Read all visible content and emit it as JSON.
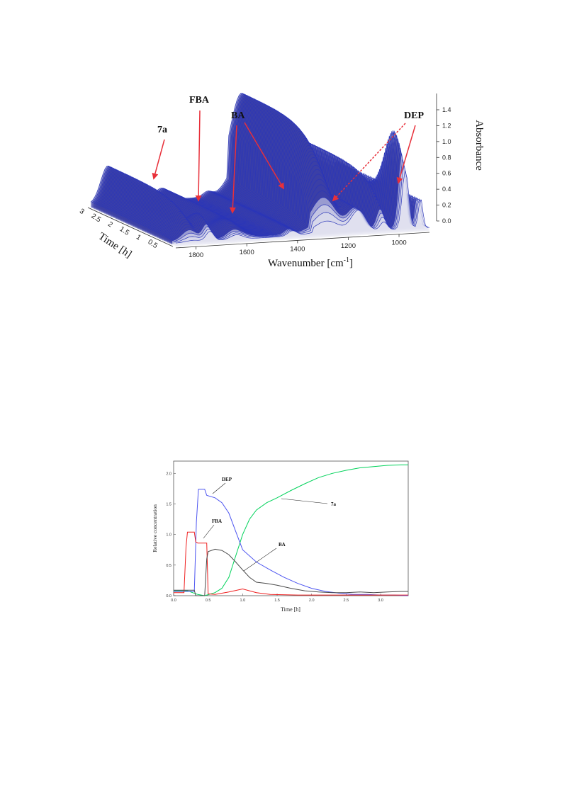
{
  "chart_data": [
    {
      "type": "area",
      "projection": "3d-waterfall",
      "xlabel": "Wavenumber [cm",
      "xlabel_sup": "-1",
      "xlabel_close": "]",
      "ylabel": "Time [h]",
      "zlabel": "Absorbance",
      "x_ticks": [
        "1800",
        "1600",
        "1400",
        "1200",
        "1000"
      ],
      "y_ticks": [
        "3",
        "2.5",
        "2",
        "1.5",
        "1",
        "0.5"
      ],
      "z_ticks": [
        "1.4",
        "1.2",
        "1.0",
        "0.8",
        "0.6",
        "0.4",
        "0.2",
        "0.0"
      ],
      "xlim": [
        1880,
        880
      ],
      "ylim": [
        0,
        3
      ],
      "zlim": [
        0,
        1.5
      ],
      "annotations": [
        {
          "text": "7a",
          "target_wavenumber": 1810
        },
        {
          "text": "FBA",
          "target_wavenumber": 1765
        },
        {
          "text": "BA",
          "target_wavenumber": 1640
        },
        {
          "text": "DEP",
          "target_wavenumber": 1240
        }
      ],
      "colors": {
        "mesh": "#2a35b8",
        "surface": "#3d3fa6",
        "highlight": "#e8e8f2",
        "arrow": "#e8303a"
      }
    },
    {
      "type": "line",
      "xlabel": "Time [h]",
      "ylabel": "Relative concentration",
      "xlim": [
        0,
        3.4
      ],
      "ylim": [
        0,
        2.2
      ],
      "x_ticks": [
        "0.0",
        "0.5",
        "1.0",
        "1.5",
        "2.0",
        "2.5",
        "3.0"
      ],
      "y_ticks": [
        "0.0",
        "0.5",
        "1.0",
        "1.5",
        "2.0"
      ],
      "grid": false,
      "annotations": [
        {
          "text": "DEP",
          "x": 0.55,
          "y": 1.7
        },
        {
          "text": "FBA",
          "x": 0.42,
          "y": 0.9
        },
        {
          "text": "7a",
          "x": 1.52,
          "y": 1.57
        },
        {
          "text": "BA",
          "x": 1.0,
          "y": 0.37
        }
      ],
      "series": [
        {
          "color": "#00d25a",
          "x": [
            0,
            0.2,
            0.35,
            0.45,
            0.6,
            0.7,
            0.8,
            0.9,
            1.0,
            1.1,
            1.2,
            1.35,
            1.5,
            1.7,
            1.9,
            2.1,
            2.3,
            2.5,
            2.7,
            2.9,
            3.1,
            3.3,
            3.4
          ],
          "y": [
            0.08,
            0.08,
            0.02,
            0.0,
            0.05,
            0.12,
            0.3,
            0.65,
            1.0,
            1.25,
            1.4,
            1.52,
            1.6,
            1.72,
            1.83,
            1.93,
            2.0,
            2.05,
            2.09,
            2.11,
            2.13,
            2.14,
            2.14
          ]
        },
        {
          "color": "#4d55f0",
          "x": [
            0,
            0.3,
            0.33,
            0.36,
            0.45,
            0.48,
            0.6,
            0.7,
            0.8,
            0.9,
            1.0,
            1.2,
            1.4,
            1.6,
            1.8,
            2.0,
            2.2,
            2.4,
            2.6,
            2.8,
            3.0,
            3.2,
            3.4
          ],
          "y": [
            0.07,
            0.07,
            1.2,
            1.74,
            1.74,
            1.64,
            1.6,
            1.52,
            1.35,
            1.05,
            0.75,
            0.55,
            0.42,
            0.3,
            0.2,
            0.12,
            0.07,
            0.04,
            0.02,
            0.02,
            0.01,
            0.01,
            0.0
          ]
        },
        {
          "color": "#ef2020",
          "x": [
            0,
            0.15,
            0.18,
            0.2,
            0.3,
            0.32,
            0.35,
            0.48,
            0.5,
            0.6,
            0.8,
            1.0,
            1.2,
            1.4,
            1.8,
            2.2,
            3.4
          ],
          "y": [
            0.05,
            0.05,
            0.8,
            1.04,
            1.04,
            0.88,
            0.86,
            0.86,
            0.03,
            0.02,
            0.06,
            0.11,
            0.05,
            0.02,
            0.01,
            0.01,
            0.01
          ]
        },
        {
          "color": "#4a4a4a",
          "x": [
            0,
            0.3,
            0.32,
            0.45,
            0.48,
            0.5,
            0.6,
            0.7,
            0.8,
            0.9,
            1.0,
            1.1,
            1.2,
            1.35,
            1.5,
            1.7,
            1.9,
            2.1,
            2.3,
            2.5,
            2.7,
            2.9,
            3.1,
            3.3,
            3.4
          ],
          "y": [
            0.09,
            0.09,
            0.0,
            0.0,
            0.6,
            0.72,
            0.76,
            0.74,
            0.67,
            0.55,
            0.42,
            0.3,
            0.22,
            0.2,
            0.17,
            0.12,
            0.08,
            0.06,
            0.05,
            0.05,
            0.06,
            0.05,
            0.06,
            0.07,
            0.07
          ]
        }
      ]
    }
  ]
}
